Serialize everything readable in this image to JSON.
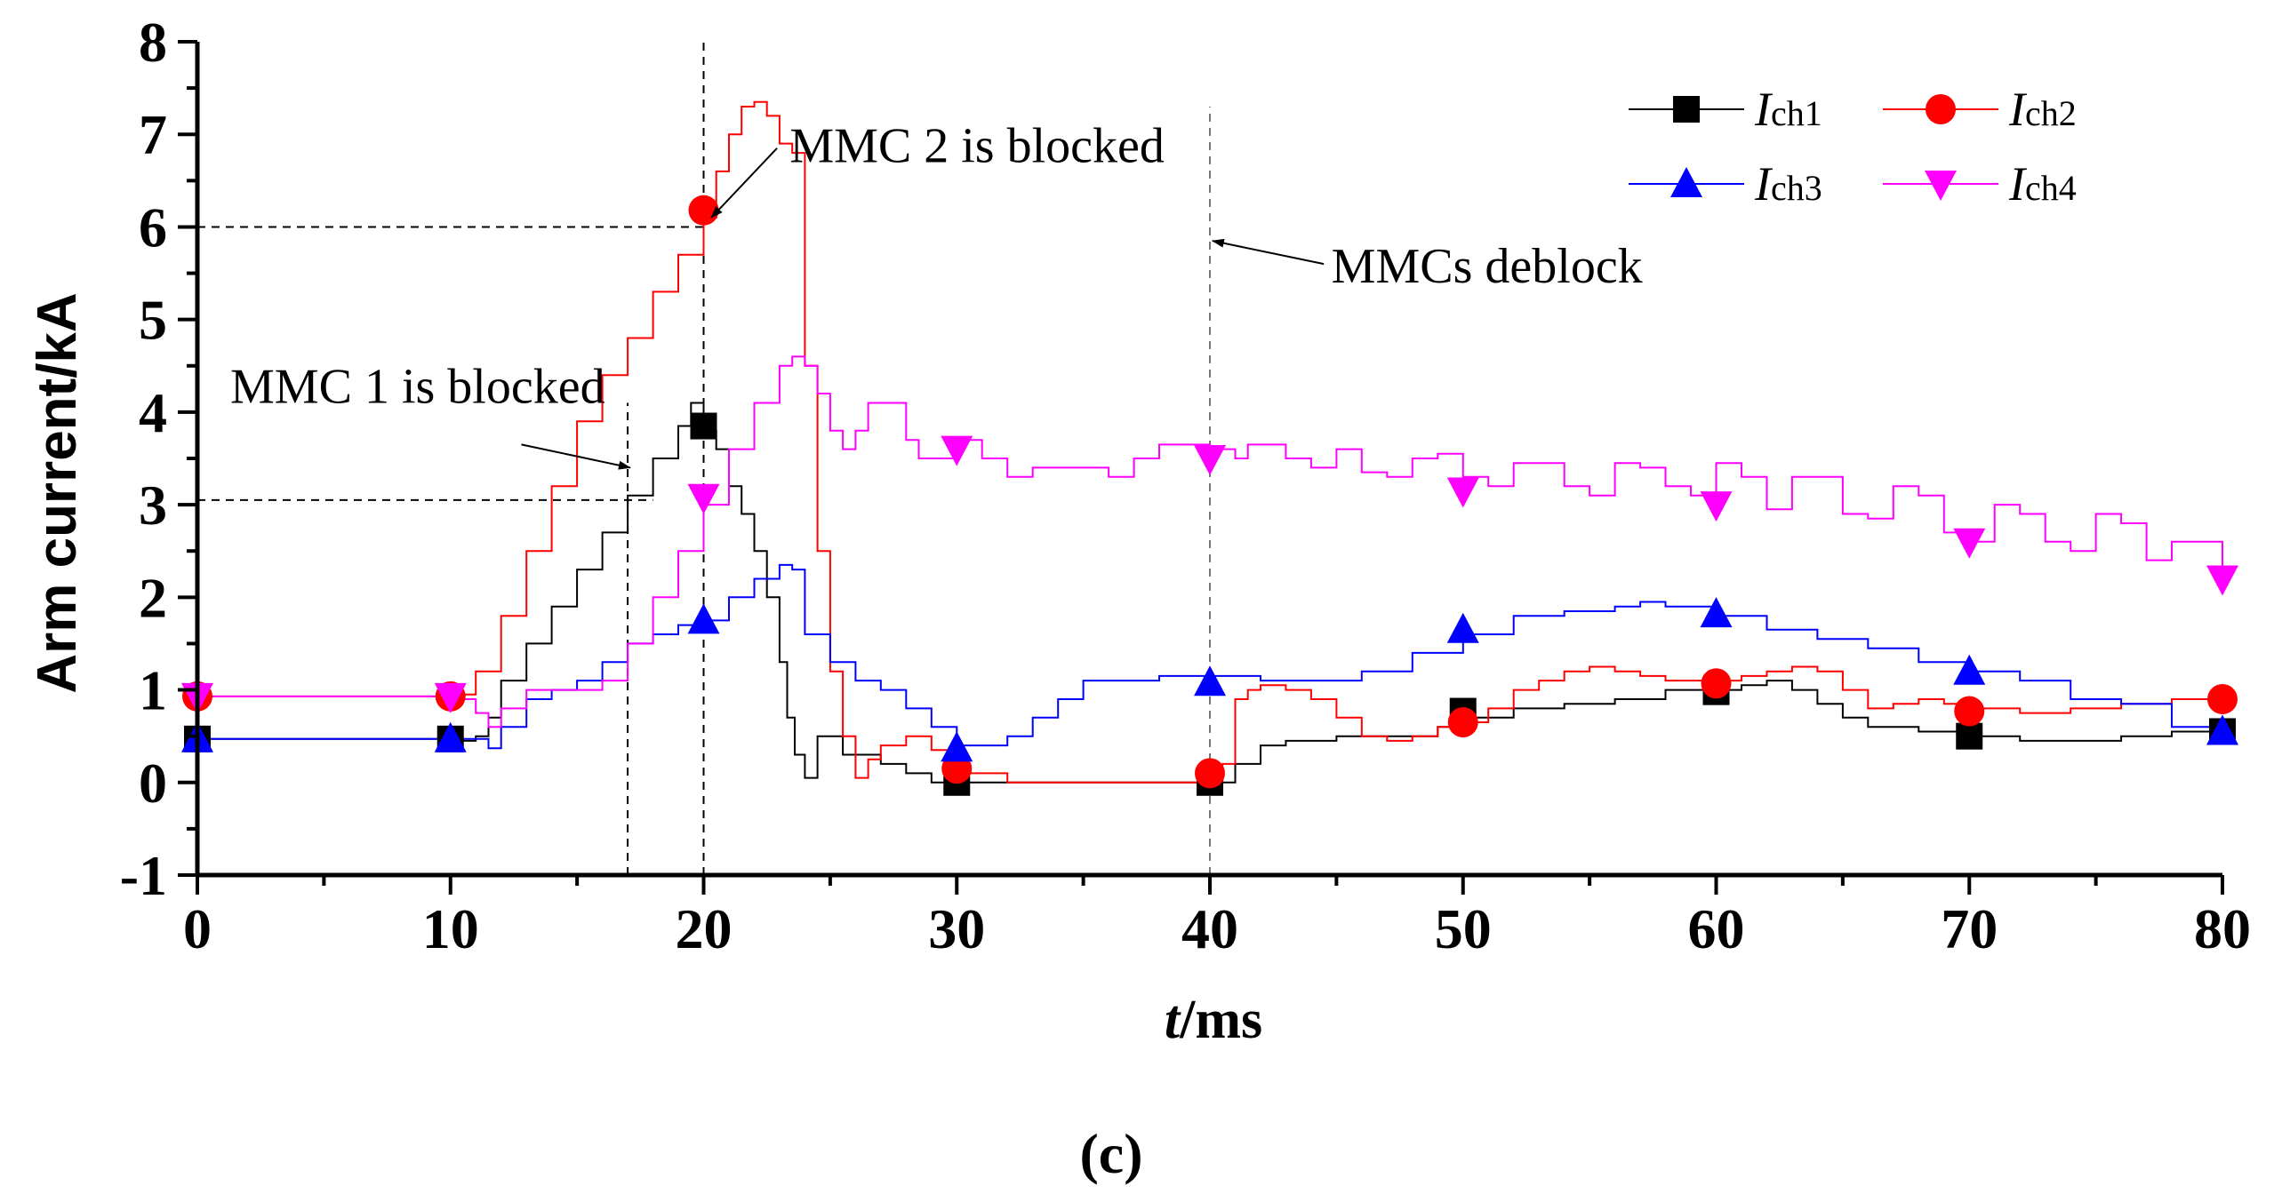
{
  "chart_data": {
    "type": "line",
    "title": "",
    "caption": "(c)",
    "xlabel_italic": "t",
    "xlabel_rest": "/ms",
    "ylabel": "Arm current/kA",
    "xlim": [
      0,
      80
    ],
    "ylim": [
      -1,
      8
    ],
    "x_ticks": [
      0,
      10,
      20,
      30,
      40,
      50,
      60,
      70,
      80
    ],
    "x_tick_labels": [
      "0",
      "10",
      "20",
      "30",
      "40",
      "50",
      "60",
      "70",
      "80"
    ],
    "y_ticks": [
      -1,
      0,
      1,
      2,
      3,
      4,
      5,
      6,
      7,
      8
    ],
    "y_tick_labels": [
      "-1",
      "0",
      "1",
      "2",
      "3",
      "4",
      "5",
      "6",
      "7",
      "8"
    ],
    "grid": false,
    "legend_position": "top-right",
    "series": [
      {
        "name": "Ich1",
        "label_main": "I",
        "label_sub": "ch1",
        "color": "#000000",
        "marker": "square",
        "marker_color": "#000000",
        "x": [
          0,
          10,
          10.5,
          11,
          11.5,
          12,
          13,
          14,
          15,
          16,
          17,
          18,
          19,
          19.5,
          20,
          20.5,
          21,
          21.5,
          22,
          22.5,
          23,
          23.3,
          23.6,
          24,
          24.5,
          25,
          25.5,
          26,
          27,
          28,
          29,
          30,
          32,
          34,
          36,
          38,
          40,
          41,
          42,
          43,
          45,
          47,
          49,
          50,
          52,
          54,
          56,
          58,
          60,
          61,
          62,
          63,
          64,
          65,
          66,
          67,
          68,
          70,
          72,
          74,
          76,
          78,
          80
        ],
        "y": [
          0.47,
          0.47,
          0.45,
          0.5,
          0.7,
          1.1,
          1.5,
          1.9,
          2.3,
          2.7,
          3.1,
          3.5,
          3.85,
          4.1,
          3.8,
          3.6,
          3.2,
          2.9,
          2.5,
          2.0,
          1.3,
          0.7,
          0.3,
          0.05,
          0.5,
          0.5,
          0.3,
          0.3,
          0.2,
          0.1,
          0.0,
          0.0,
          0.0,
          0.0,
          0.0,
          0.0,
          0.0,
          0.2,
          0.4,
          0.45,
          0.5,
          0.5,
          0.6,
          0.7,
          0.8,
          0.85,
          0.9,
          1.0,
          1.0,
          1.05,
          1.1,
          1.0,
          0.85,
          0.7,
          0.6,
          0.6,
          0.55,
          0.5,
          0.45,
          0.45,
          0.5,
          0.55,
          0.5
        ],
        "marker_x": [
          0,
          10,
          20,
          30,
          40,
          50,
          60,
          70,
          80
        ],
        "marker_y": [
          0.47,
          0.47,
          3.85,
          0.0,
          0.0,
          0.77,
          0.98,
          0.5,
          0.55
        ]
      },
      {
        "name": "Ich2",
        "label_main": "I",
        "label_sub": "ch2",
        "color": "#ff0000",
        "marker": "circle",
        "marker_color": "#ff0000",
        "x": [
          0,
          10,
          10.5,
          11,
          12,
          13,
          14,
          15,
          16,
          17,
          18,
          19,
          20,
          20.5,
          21,
          21.5,
          22,
          22.5,
          23,
          23.5,
          24,
          24.5,
          25,
          25.5,
          26,
          26.5,
          27,
          28,
          29,
          30,
          32,
          34,
          36,
          38,
          40,
          40.5,
          41,
          41.5,
          42,
          43,
          44,
          45,
          46,
          47,
          48,
          49,
          50,
          51,
          52,
          53,
          54,
          55,
          56,
          57,
          58,
          59,
          60,
          61,
          62,
          63,
          64,
          65,
          66,
          67,
          68,
          69,
          70,
          72,
          74,
          76,
          78,
          80
        ],
        "y": [
          0.93,
          0.93,
          0.95,
          1.2,
          1.8,
          2.5,
          3.2,
          3.9,
          4.4,
          4.8,
          5.3,
          5.7,
          6.1,
          6.6,
          7.0,
          7.3,
          7.35,
          7.2,
          6.9,
          6.8,
          4.5,
          2.5,
          1.2,
          0.5,
          0.05,
          0.25,
          0.4,
          0.5,
          0.35,
          0.1,
          0.0,
          0.0,
          0.0,
          0.0,
          0.0,
          0.2,
          0.9,
          1.0,
          1.05,
          1.0,
          0.9,
          0.7,
          0.5,
          0.45,
          0.5,
          0.6,
          0.65,
          0.8,
          1.0,
          1.1,
          1.2,
          1.25,
          1.2,
          1.15,
          1.1,
          1.1,
          1.1,
          1.15,
          1.2,
          1.25,
          1.2,
          1.0,
          0.8,
          0.85,
          0.9,
          0.85,
          0.8,
          0.75,
          0.8,
          0.85,
          0.9,
          0.9
        ],
        "marker_x": [
          0,
          10,
          20,
          30,
          40,
          50,
          60,
          70,
          80
        ],
        "marker_y": [
          0.93,
          0.93,
          6.18,
          0.15,
          0.1,
          0.65,
          1.07,
          0.77,
          0.9
        ]
      },
      {
        "name": "Ich3",
        "label_main": "I",
        "label_sub": "ch3",
        "color": "#0000ff",
        "marker": "triangle-up",
        "marker_color": "#0000ff",
        "x": [
          0,
          10,
          11,
          11.5,
          12,
          13,
          14,
          15,
          16,
          17,
          18,
          19,
          20,
          21,
          22,
          23,
          23.5,
          24,
          25,
          26,
          27,
          28,
          29,
          30,
          31,
          32,
          33,
          34,
          35,
          36,
          38,
          40,
          42,
          44,
          46,
          48,
          50,
          52,
          54,
          56,
          57,
          58,
          60,
          62,
          64,
          66,
          68,
          70,
          72,
          74,
          76,
          78,
          80
        ],
        "y": [
          0.47,
          0.47,
          0.47,
          0.37,
          0.6,
          0.9,
          1.0,
          1.1,
          1.3,
          1.5,
          1.6,
          1.7,
          1.75,
          2.0,
          2.2,
          2.35,
          2.3,
          1.6,
          1.3,
          1.1,
          1.0,
          0.8,
          0.6,
          0.4,
          0.4,
          0.5,
          0.7,
          0.9,
          1.1,
          1.1,
          1.15,
          1.15,
          1.1,
          1.1,
          1.2,
          1.4,
          1.6,
          1.8,
          1.85,
          1.9,
          1.95,
          1.9,
          1.8,
          1.65,
          1.55,
          1.45,
          1.3,
          1.2,
          1.1,
          0.9,
          0.85,
          0.6,
          0.55
        ],
        "marker_x": [
          0,
          10,
          20,
          30,
          40,
          50,
          60,
          70,
          80
        ],
        "marker_y": [
          0.47,
          0.47,
          1.75,
          0.37,
          1.08,
          1.65,
          1.82,
          1.2,
          0.55
        ]
      },
      {
        "name": "Ich4",
        "label_main": "I",
        "label_sub": "ch4",
        "color": "#ff00ff",
        "marker": "triangle-down",
        "marker_color": "#ff00ff",
        "x": [
          0,
          10,
          10.5,
          11,
          11.5,
          12,
          13,
          14,
          15,
          16,
          17,
          18,
          19,
          20,
          21,
          22,
          23,
          23.5,
          24,
          24.5,
          25,
          25.5,
          26,
          26.5,
          27,
          28,
          28.5,
          29,
          30,
          31,
          32,
          33,
          34,
          35,
          36,
          37,
          38,
          39,
          40,
          41,
          41.5,
          42,
          43,
          44,
          45,
          46,
          47,
          48,
          49,
          50,
          51,
          52,
          53,
          54,
          55,
          56,
          57,
          58,
          59,
          60,
          61,
          62,
          63,
          64,
          65,
          66,
          67,
          68,
          69,
          70,
          71,
          72,
          73,
          74,
          75,
          76,
          77,
          78,
          79,
          80
        ],
        "y": [
          0.93,
          0.93,
          0.9,
          0.75,
          0.6,
          0.8,
          1.0,
          1.0,
          1.0,
          1.1,
          1.5,
          2.0,
          2.5,
          3.0,
          3.6,
          4.1,
          4.5,
          4.6,
          4.5,
          4.2,
          3.8,
          3.6,
          3.8,
          4.1,
          4.1,
          3.7,
          3.5,
          3.5,
          3.7,
          3.5,
          3.3,
          3.4,
          3.4,
          3.4,
          3.3,
          3.5,
          3.65,
          3.65,
          3.6,
          3.5,
          3.65,
          3.65,
          3.5,
          3.4,
          3.6,
          3.35,
          3.3,
          3.5,
          3.55,
          3.3,
          3.2,
          3.45,
          3.45,
          3.2,
          3.1,
          3.45,
          3.4,
          3.2,
          3.1,
          3.45,
          3.3,
          2.95,
          3.3,
          3.3,
          2.9,
          2.85,
          3.2,
          3.1,
          2.7,
          2.6,
          3.0,
          2.9,
          2.6,
          2.5,
          2.9,
          2.8,
          2.4,
          2.6,
          2.6,
          2.2
        ],
        "marker_x": [
          0,
          10,
          20,
          30,
          40,
          50,
          60,
          70,
          80
        ],
        "marker_y": [
          0.93,
          0.93,
          3.08,
          3.6,
          3.5,
          3.15,
          3.0,
          2.6,
          2.2
        ]
      }
    ],
    "reference_lines": [
      {
        "name": "vline-17ms",
        "orientation": "vertical",
        "x": 17,
        "y_from": -1,
        "y_to": 4.1
      },
      {
        "name": "vline-20ms",
        "orientation": "vertical",
        "x": 20,
        "y_from": -1,
        "y_to": 8
      },
      {
        "name": "vline-40ms",
        "orientation": "vertical",
        "x": 40,
        "y_from": -1,
        "y_to": 7.3
      },
      {
        "name": "hline-6kA",
        "orientation": "horizontal",
        "y": 6,
        "x_from": 0,
        "x_to": 20
      },
      {
        "name": "hline-3kA",
        "orientation": "horizontal",
        "y": 3.05,
        "x_from": 0,
        "x_to": 18
      }
    ],
    "annotations": [
      {
        "name": "mmc2-blocked-annotation",
        "text": "MMC 2 is blocked",
        "text_x": 23.4,
        "text_y": 6.7,
        "arrow_from_x": 22.9,
        "arrow_from_y": 6.85,
        "arrow_to_x": 20.3,
        "arrow_to_y": 6.1
      },
      {
        "name": "mmc1-blocked-annotation",
        "text": "MMC 1 is blocked",
        "text_x": 1.3,
        "text_y": 4.1,
        "arrow_from_x": 12.8,
        "arrow_from_y": 3.65,
        "arrow_to_x": 17.1,
        "arrow_to_y": 3.4
      },
      {
        "name": "mmcs-deblock-annotation",
        "text": "MMCs deblock",
        "text_x": 44.8,
        "text_y": 5.4,
        "arrow_from_x": 44.5,
        "arrow_from_y": 5.6,
        "arrow_to_x": 40.1,
        "arrow_to_y": 5.85
      }
    ]
  }
}
